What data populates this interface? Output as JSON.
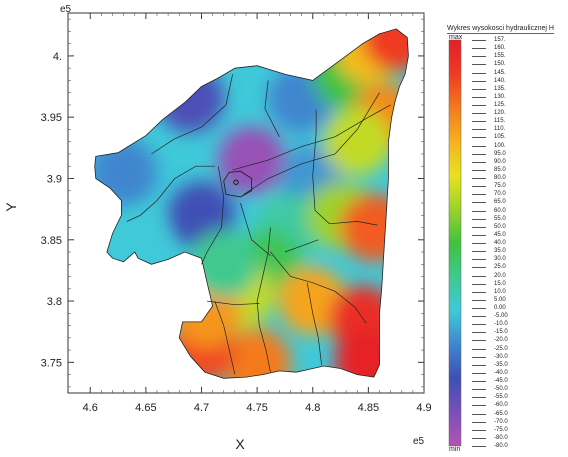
{
  "chart_data": {
    "type": "heatmap",
    "title": "",
    "xlabel": "X",
    "ylabel": "Y",
    "x_exponent": "e5",
    "y_exponent": "e5",
    "xlim": [
      4.58,
      4.9
    ],
    "ylim": [
      3.725,
      4.035
    ],
    "x_ticks": [
      "4.6",
      "4.65",
      "4.7",
      "4.75",
      "4.8",
      "4.85",
      "4.9"
    ],
    "y_ticks": [
      "3.75",
      "3.8",
      "3.85",
      "3.9",
      "3.95",
      "4."
    ],
    "x_tick_values": [
      4.6,
      4.65,
      4.7,
      4.75,
      4.8,
      4.85,
      4.9
    ],
    "y_tick_values": [
      3.75,
      3.8,
      3.85,
      3.9,
      3.95,
      4.0
    ],
    "grid": false,
    "legend": {
      "title": "Wykres wysokosci hydraulicznej H",
      "max_label": "max",
      "min_label": "min",
      "placement": "right",
      "values": [
        "157.",
        "160.",
        "155.",
        "150.",
        "145.",
        "140.",
        "135.",
        "130.",
        "125.",
        "120.",
        "115.",
        "110.",
        "105.",
        "100.",
        "95.0",
        "90.0",
        "85.0",
        "80.0",
        "75.0",
        "70.0",
        "65.0",
        "60.0",
        "55.0",
        "50.0",
        "45.0",
        "40.0",
        "35.0",
        "30.0",
        "25.0",
        "20.0",
        "15.0",
        "10.0",
        "5.00",
        "0.00",
        "-5.00",
        "-10.0",
        "-15.0",
        "-20.0",
        "-25.0",
        "-30.0",
        "-35.0",
        "-40.0",
        "-45.0",
        "-50.0",
        "-55.0",
        "-60.0",
        "-65.0",
        "-70.0",
        "-75.0",
        "-80.0",
        "-80.0"
      ]
    },
    "colormap": [
      "#b553b4",
      "#7a4fb8",
      "#3f4fb5",
      "#3f86cf",
      "#3fc9d9",
      "#3fc98f",
      "#3fc23f",
      "#9cd22a",
      "#e7e21f",
      "#f5b21d",
      "#f47a1e",
      "#ef3b24",
      "#e51e25"
    ],
    "value_range": [
      -80,
      160
    ],
    "boundary": [
      [
        4.605,
        3.918
      ],
      [
        4.625,
        3.921
      ],
      [
        4.65,
        3.935
      ],
      [
        4.665,
        3.948
      ],
      [
        4.685,
        3.962
      ],
      [
        4.7,
        3.975
      ],
      [
        4.715,
        3.982
      ],
      [
        4.73,
        3.99
      ],
      [
        4.75,
        3.992
      ],
      [
        4.775,
        3.985
      ],
      [
        4.8,
        3.98
      ],
      [
        4.815,
        3.99
      ],
      [
        4.83,
        4.0
      ],
      [
        4.845,
        4.01
      ],
      [
        4.86,
        4.018
      ],
      [
        4.875,
        4.022
      ],
      [
        4.885,
        4.015
      ],
      [
        4.886,
        4.0
      ],
      [
        4.883,
        3.985
      ],
      [
        4.878,
        3.975
      ],
      [
        4.874,
        3.963
      ],
      [
        4.871,
        3.95
      ],
      [
        4.868,
        3.93
      ],
      [
        4.868,
        3.9
      ],
      [
        4.866,
        3.87
      ],
      [
        4.864,
        3.84
      ],
      [
        4.862,
        3.81
      ],
      [
        4.86,
        3.79
      ],
      [
        4.86,
        3.765
      ],
      [
        4.86,
        3.748
      ],
      [
        4.855,
        3.738
      ],
      [
        4.84,
        3.74
      ],
      [
        4.825,
        3.745
      ],
      [
        4.81,
        3.747
      ],
      [
        4.8,
        3.745
      ],
      [
        4.785,
        3.742
      ],
      [
        4.77,
        3.743
      ],
      [
        4.755,
        3.74
      ],
      [
        4.74,
        3.738
      ],
      [
        4.72,
        3.737
      ],
      [
        4.703,
        3.742
      ],
      [
        4.69,
        3.755
      ],
      [
        4.68,
        3.77
      ],
      [
        4.683,
        3.783
      ],
      [
        4.7,
        3.783
      ],
      [
        4.71,
        3.796
      ],
      [
        4.705,
        3.815
      ],
      [
        4.7,
        3.835
      ],
      [
        4.685,
        3.84
      ],
      [
        4.67,
        3.834
      ],
      [
        4.655,
        3.83
      ],
      [
        4.643,
        3.835
      ],
      [
        4.64,
        3.84
      ],
      [
        4.63,
        3.832
      ],
      [
        4.62,
        3.835
      ],
      [
        4.615,
        3.84
      ],
      [
        4.62,
        3.855
      ],
      [
        4.628,
        3.87
      ],
      [
        4.628,
        3.882
      ],
      [
        4.618,
        3.892
      ],
      [
        4.605,
        3.9
      ],
      [
        4.604,
        3.91
      ]
    ],
    "field_points": [
      {
        "x": 4.745,
        "y": 3.915,
        "value": -70
      },
      {
        "x": 4.69,
        "y": 3.965,
        "value": -45
      },
      {
        "x": 4.7,
        "y": 3.87,
        "value": -40
      },
      {
        "x": 4.63,
        "y": 3.905,
        "value": -20
      },
      {
        "x": 4.64,
        "y": 3.845,
        "value": 0
      },
      {
        "x": 4.79,
        "y": 3.965,
        "value": -20
      },
      {
        "x": 4.8,
        "y": 3.9,
        "value": -15
      },
      {
        "x": 4.78,
        "y": 3.86,
        "value": 15
      },
      {
        "x": 4.83,
        "y": 3.985,
        "value": 40
      },
      {
        "x": 4.85,
        "y": 4.005,
        "value": 95
      },
      {
        "x": 4.875,
        "y": 4.015,
        "value": 140
      },
      {
        "x": 4.865,
        "y": 3.95,
        "value": 115
      },
      {
        "x": 4.84,
        "y": 3.93,
        "value": 70
      },
      {
        "x": 4.825,
        "y": 3.87,
        "value": 60
      },
      {
        "x": 4.855,
        "y": 3.86,
        "value": 130
      },
      {
        "x": 4.76,
        "y": 3.83,
        "value": 35
      },
      {
        "x": 4.735,
        "y": 3.805,
        "value": 70
      },
      {
        "x": 4.8,
        "y": 3.8,
        "value": 105
      },
      {
        "x": 4.845,
        "y": 3.785,
        "value": 150
      },
      {
        "x": 4.85,
        "y": 3.75,
        "value": 158
      },
      {
        "x": 4.75,
        "y": 3.75,
        "value": 120
      },
      {
        "x": 4.7,
        "y": 3.76,
        "value": 135
      },
      {
        "x": 4.705,
        "y": 3.79,
        "value": 110
      },
      {
        "x": 4.72,
        "y": 3.83,
        "value": 20
      }
    ],
    "district_lines": [
      [
        [
          4.728,
          3.985
        ],
        [
          4.722,
          3.96
        ],
        [
          4.7,
          3.942
        ],
        [
          4.675,
          3.932
        ],
        [
          4.655,
          3.92
        ]
      ],
      [
        [
          4.712,
          3.91
        ],
        [
          4.695,
          3.91
        ],
        [
          4.676,
          3.9
        ],
        [
          4.66,
          3.882
        ],
        [
          4.645,
          3.87
        ],
        [
          4.633,
          3.865
        ]
      ],
      [
        [
          4.728,
          3.907
        ],
        [
          4.76,
          3.915
        ],
        [
          4.79,
          3.926
        ],
        [
          4.82,
          3.934
        ],
        [
          4.85,
          3.95
        ],
        [
          4.87,
          3.96
        ]
      ],
      [
        [
          4.738,
          3.887
        ],
        [
          4.76,
          3.9
        ],
        [
          4.79,
          3.912
        ],
        [
          4.82,
          3.92
        ],
        [
          4.84,
          3.94
        ],
        [
          4.86,
          3.97
        ]
      ],
      [
        [
          4.803,
          3.956
        ],
        [
          4.803,
          3.937
        ],
        [
          4.8,
          3.902
        ],
        [
          4.802,
          3.874
        ],
        [
          4.815,
          3.863
        ],
        [
          4.84,
          3.865
        ],
        [
          4.858,
          3.862
        ]
      ],
      [
        [
          4.77,
          3.934
        ],
        [
          4.757,
          3.957
        ],
        [
          4.76,
          3.98
        ]
      ],
      [
        [
          4.715,
          3.91
        ],
        [
          4.72,
          3.885
        ],
        [
          4.718,
          3.86
        ],
        [
          4.705,
          3.84
        ],
        [
          4.7,
          3.83
        ]
      ],
      [
        [
          4.735,
          3.88
        ],
        [
          4.745,
          3.85
        ],
        [
          4.762,
          3.837
        ]
      ],
      [
        [
          4.762,
          3.86
        ],
        [
          4.76,
          3.84
        ],
        [
          4.755,
          3.82
        ],
        [
          4.75,
          3.8
        ],
        [
          4.752,
          3.78
        ],
        [
          4.758,
          3.76
        ],
        [
          4.762,
          3.742
        ]
      ],
      [
        [
          4.762,
          3.84
        ],
        [
          4.78,
          3.82
        ],
        [
          4.8,
          3.815
        ],
        [
          4.82,
          3.808
        ],
        [
          4.838,
          3.795
        ],
        [
          4.848,
          3.782
        ]
      ],
      [
        [
          4.775,
          3.84
        ],
        [
          4.79,
          3.845
        ],
        [
          4.805,
          3.85
        ]
      ],
      [
        [
          4.705,
          3.8
        ],
        [
          4.73,
          3.797
        ],
        [
          4.752,
          3.798
        ]
      ],
      [
        [
          4.712,
          3.8
        ],
        [
          4.72,
          3.78
        ],
        [
          4.725,
          3.76
        ],
        [
          4.73,
          3.74
        ]
      ],
      [
        [
          4.795,
          3.815
        ],
        [
          4.8,
          3.79
        ],
        [
          4.805,
          3.77
        ],
        [
          4.808,
          3.748
        ]
      ]
    ],
    "highlight_polygon": [
      [
        4.72,
        3.898
      ],
      [
        4.725,
        3.905
      ],
      [
        4.735,
        3.906
      ],
      [
        4.745,
        3.9
      ],
      [
        4.745,
        3.89
      ],
      [
        4.735,
        3.885
      ],
      [
        4.722,
        3.887
      ]
    ],
    "marker_point": [
      4.731,
      3.897
    ]
  }
}
